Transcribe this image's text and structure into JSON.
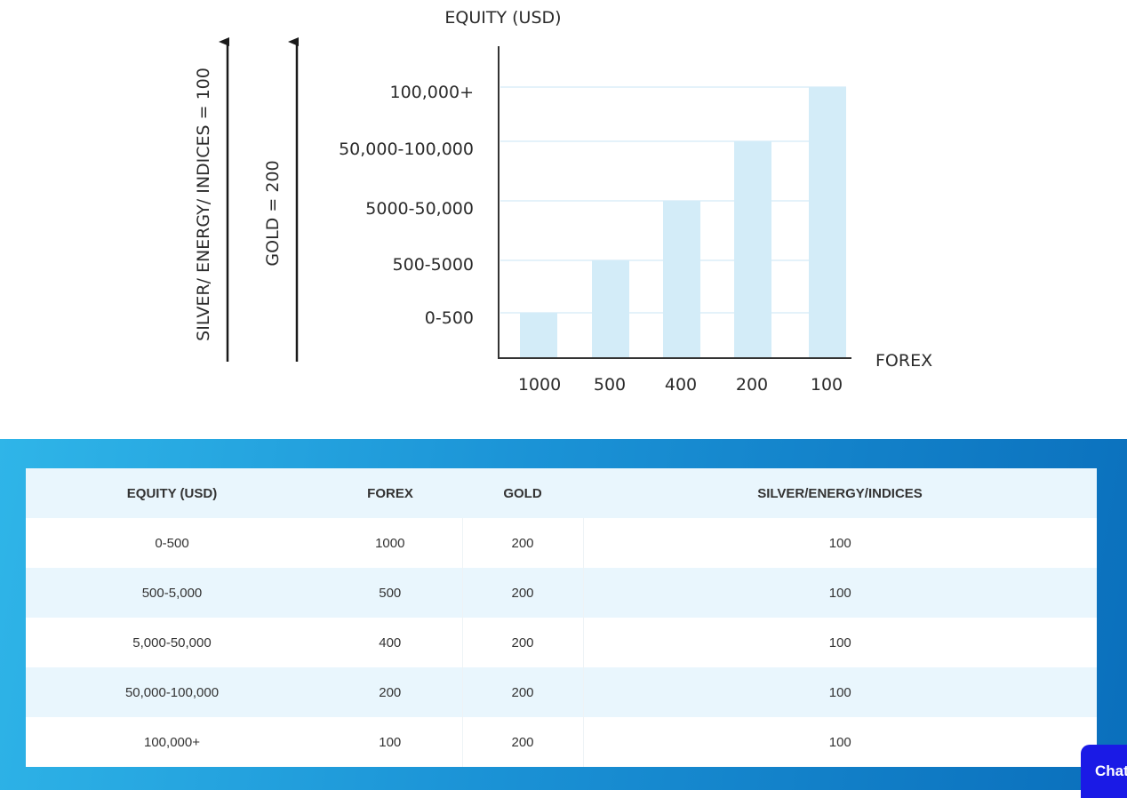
{
  "chart_data": {
    "type": "bar",
    "title": "EQUITY (USD)",
    "xlabel": "FOREX",
    "categories": [
      "1000",
      "500",
      "400",
      "200",
      "100"
    ],
    "y_levels": [
      "0-500",
      "500-5000",
      "5000-50,000",
      "50,000-100,000",
      "100,000+"
    ],
    "values": [
      1,
      2,
      3,
      4,
      5
    ],
    "bar_color": "#d3ecf8",
    "grid_color": "#e4f2fa",
    "side_labels": [
      "SILVER/ ENERGY/ INDICES = 100",
      "GOLD = 200"
    ]
  },
  "table": {
    "headers": [
      "EQUITY (USD)",
      "FOREX",
      "GOLD",
      "SILVER/ENERGY/INDICES"
    ],
    "rows": [
      [
        "0-500",
        "1000",
        "200",
        "100"
      ],
      [
        "500-5,000",
        "500",
        "200",
        "100"
      ],
      [
        "5,000-50,000",
        "400",
        "200",
        "100"
      ],
      [
        "50,000-100,000",
        "200",
        "200",
        "100"
      ],
      [
        "100,000+",
        "100",
        "200",
        "100"
      ]
    ]
  },
  "chat_button": {
    "label": "Chat"
  },
  "colors": {
    "chat_bg": "#1a1ae6",
    "table_band_start": "#2fb5e8",
    "table_band_end": "#0a6fbc"
  }
}
